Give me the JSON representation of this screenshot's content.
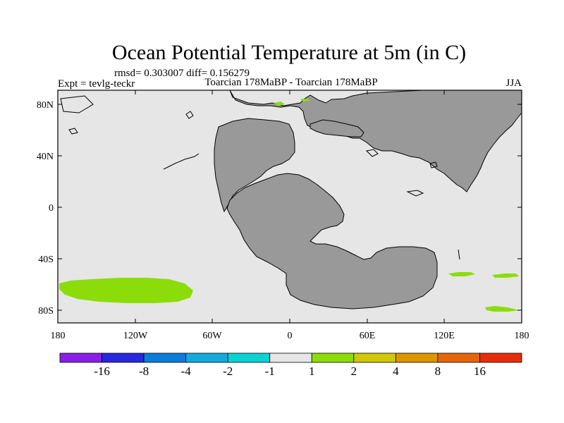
{
  "title": "Ocean Potential Temperature at 5m (in C)",
  "stats": "rmsd= 0.303007 diff= 0.156279",
  "expt": "Expt = tevlg-teckr",
  "comparison": "Toarcian 178MaBP - Toarcian 178MaBP",
  "season": "JJA",
  "map": {
    "lat_labels": [
      "80N",
      "40N",
      "0",
      "40S",
      "80S"
    ],
    "lon_labels": [
      "180",
      "120W",
      "60W",
      "0",
      "60E",
      "120E",
      "180"
    ]
  },
  "colorbar": {
    "colors": [
      "#8a1ee6",
      "#2828dc",
      "#0a7ddc",
      "#14aadc",
      "#0ad2d2",
      "#e6e6e6",
      "#8cdc0a",
      "#d2c80a",
      "#dc9600",
      "#e6640a",
      "#e62d0a"
    ],
    "labels": [
      "-16",
      "-8",
      "-4",
      "-2",
      "-1",
      "1",
      "2",
      "4",
      "8",
      "16"
    ]
  },
  "colors": {
    "ocean": "#e6e6e6",
    "land": "#999999",
    "anomaly": "#8cdc0a"
  }
}
